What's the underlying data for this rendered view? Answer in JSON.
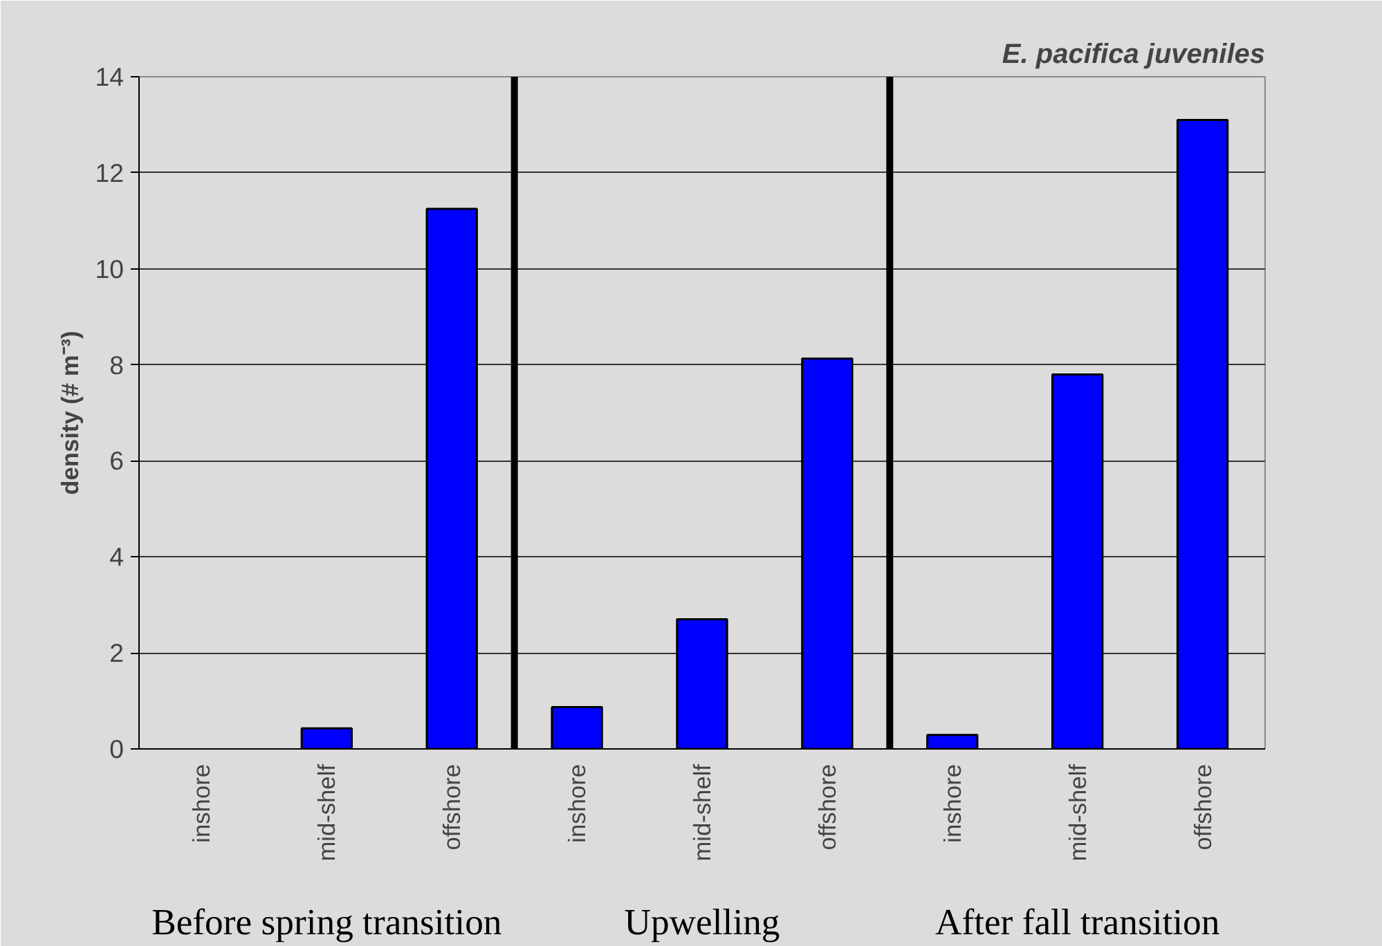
{
  "chart_data": {
    "type": "bar",
    "title": "E. pacifica juveniles",
    "ylabel": "density (# m⁻³)",
    "categories": [
      "inshore",
      "mid-shelf",
      "offshore",
      "inshore",
      "mid-shelf",
      "offshore",
      "inshore",
      "mid-shelf",
      "offshore"
    ],
    "values": [
      0,
      0.43,
      11.25,
      0.87,
      2.7,
      8.13,
      0.29,
      7.8,
      13.1
    ],
    "color": "#0000ff",
    "ylim": [
      0,
      14
    ],
    "yticks": [
      0,
      2,
      4,
      6,
      8,
      10,
      12,
      14
    ],
    "grid": "y",
    "annotations": [
      "Before spring transition",
      "Upwelling",
      "After fall transition"
    ]
  }
}
